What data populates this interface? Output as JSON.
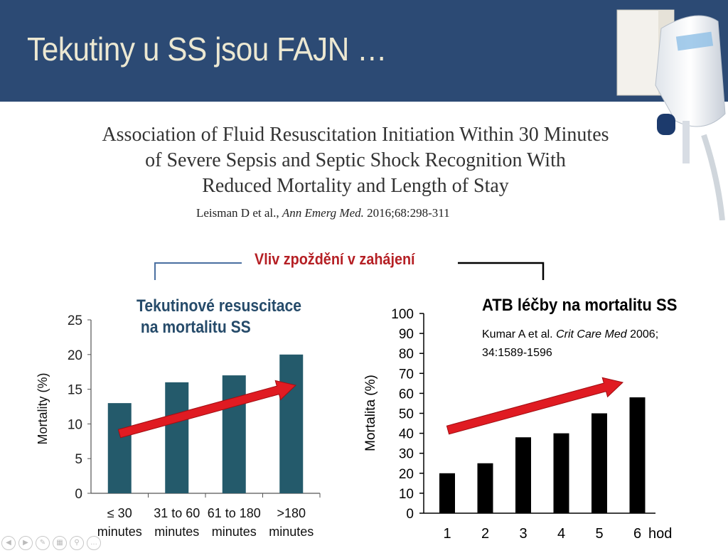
{
  "slide": {
    "title": "Tekutiny u SS jsou FAJN …",
    "paper_title_line1": "Association of Fluid Resuscitation Initiation Within 30 Minutes",
    "paper_title_line2": "of Severe Sepsis and Septic Shock Recognition With",
    "paper_title_line3": "Reduced Mortality and Length of Stay",
    "citation_authors": "Leisman D  et al.,",
    "citation_journal": "Ann Emerg Med.",
    "citation_ref": "2016;68:298-311",
    "delay_label": "Vliv zpoždění v zahájení",
    "left_title": "Tekutinové resuscitace\n na mortalitu SS",
    "right_title": "ATB léčby na mortalitu SS",
    "right_citation_authors": "Kumar A et al.",
    "right_citation_journal": "Crit Care Med",
    "right_citation_ref": "2006; 34:1589-1596"
  },
  "colors": {
    "header": "#2c4a74",
    "left_bars": "#245a6b",
    "right_bars": "#000000",
    "arrow": "#e01b22",
    "delay_label": "#b51f24"
  },
  "chart_data": [
    {
      "type": "bar",
      "categories": [
        "≤ 30 minutes",
        "31 to 60 minutes",
        "61 to 180 minutes",
        ">180 minutes"
      ],
      "values": [
        13,
        16,
        17,
        20
      ],
      "ylabel": "Mortality (%)",
      "yticks": [
        "0",
        "5",
        "10",
        "15",
        "20",
        "25"
      ],
      "ylim": [
        0,
        25
      ],
      "grid": false,
      "annotation": "red upward trend arrow"
    },
    {
      "type": "bar",
      "categories": [
        "1",
        "2",
        "3",
        "4",
        "5",
        "6"
      ],
      "values": [
        20,
        25,
        38,
        40,
        50,
        58
      ],
      "ylabel": "Mortalita (%)",
      "xlabel": "hod",
      "yticks": [
        "0",
        "10",
        "20",
        "30",
        "40",
        "50",
        "60",
        "70",
        "80",
        "90",
        "100"
      ],
      "ylim": [
        0,
        100
      ],
      "grid": false,
      "annotation": "red upward trend arrow"
    }
  ],
  "toolbar": {
    "icons": [
      "previous-icon",
      "next-icon",
      "pen-icon",
      "slides-icon",
      "zoom-icon",
      "more-icon"
    ]
  }
}
